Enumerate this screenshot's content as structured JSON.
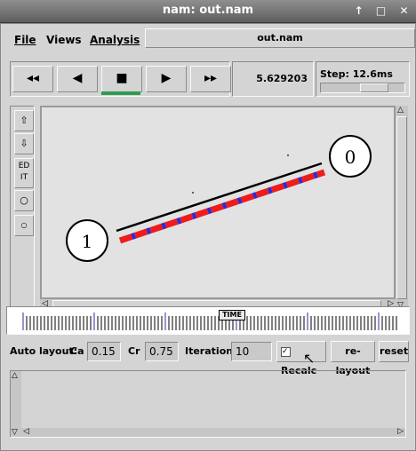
{
  "window": {
    "title": "nam: out.nam",
    "controls": [
      "↑",
      "□",
      "✕"
    ]
  },
  "menu": {
    "file": "File",
    "views": "Views",
    "analysis": "Analysis"
  },
  "file_name": "out.nam",
  "transport": {
    "rewind": "◂◂",
    "back": "◀",
    "stop": "■",
    "play": "▶",
    "forward": "▸▸"
  },
  "time": "5.629203",
  "step": {
    "label": "Step: 12.6ms"
  },
  "sidebar": {
    "edit": "ED\nIT"
  },
  "nodes": [
    {
      "label": "0"
    },
    {
      "label": "1"
    }
  ],
  "timeline": {
    "label": "TIME"
  },
  "auto_layout": {
    "label": "Auto layout:",
    "ca_label": "Ca",
    "ca_value": "0.15",
    "cr_label": "Cr",
    "cr_value": "0.75",
    "iterations_label": "Iterations",
    "iterations_value": "10",
    "recalc_label": "Recalc",
    "relayout_label": "re-layout",
    "reset_label": "reset"
  },
  "colors": {
    "packet_red": "#ee1c1c",
    "packet_blue": "#2b2bd6"
  }
}
